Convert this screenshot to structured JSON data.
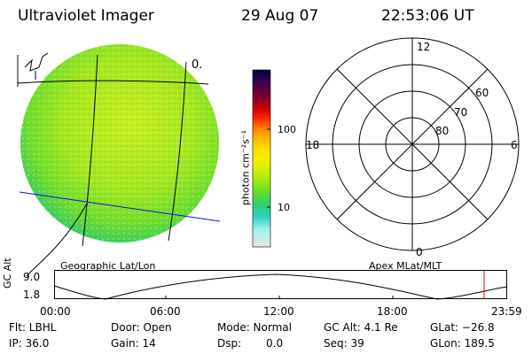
{
  "header": {
    "title": "Ultraviolet Imager",
    "date": "29 Aug 07",
    "time": "22:53:06 UT"
  },
  "image_panel": {
    "annotation": "0.",
    "caption": "Geographic Lat/Lon"
  },
  "colorbar": {
    "label": "photon cm⁻²s⁻¹",
    "tick_100": "100",
    "tick_10": "10",
    "colors": [
      "#000040",
      "#3a0050",
      "#7a0030",
      "#c00000",
      "#ff2000",
      "#ff6a00",
      "#ffa500",
      "#ffd000",
      "#ffff00",
      "#b8f000",
      "#60e000",
      "#20d060",
      "#30d0c0",
      "#80f0f0",
      "#c0f0f0",
      "#e8e8e8"
    ]
  },
  "polar_plot": {
    "caption": "Apex MLat/MLT",
    "mlt_top": "12",
    "mlt_left": "18",
    "mlt_right": "6",
    "mlt_bottom": "0",
    "lat_60": "60",
    "lat_70": "70",
    "lat_80": "80"
  },
  "altitude_plot": {
    "ylabel": "GC Alt",
    "y_max": "9.0",
    "y_min": "1.8",
    "x_ticks": [
      "00:00",
      "06:00",
      "12:00",
      "18:00",
      "23:59"
    ],
    "current_time_marker_color": "#e00000"
  },
  "footer": {
    "flt": "Flt: LBHL",
    "ip": "IP: 36.0",
    "door": "Door: Open",
    "gain": "Gain: 14",
    "mode": "Mode: Normal",
    "dsp": "Dsp:",
    "dsp_value": "0.0",
    "gc_alt": "GC Alt: 4.1 Re",
    "seq": "Seq: 39",
    "glat": "GLat: −26.8",
    "glon": "GLon: 189.5"
  }
}
